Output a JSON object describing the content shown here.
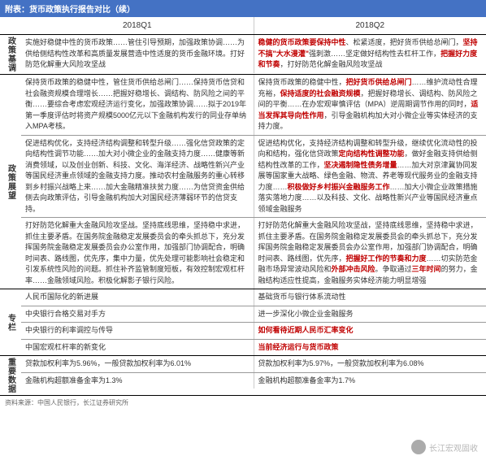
{
  "title": "附表：货币政策执行报告对比（续）",
  "header": {
    "col1": "2018Q1",
    "col2": "2018Q2"
  },
  "sections": [
    {
      "label": "政策基调",
      "rows": [
        {
          "q1": [
            {
              "t": "实施好稳健中性的货币政策……管住引导预期，加强政策协调……为供给侧结构性改革和高质量发展营造中性适度的货币金融环境。打好防范化解重大风险攻坚战",
              "r": false
            }
          ],
          "q2": [
            {
              "t": "稳健的货币政策要保持中性",
              "r": true
            },
            {
              "t": "、松紧适度，把好货币供给总闸门，",
              "r": false
            },
            {
              "t": "坚持不搞\"大水漫灌\"",
              "r": true
            },
            {
              "t": "强刺激……坚定做好结构性去杠杆工作，",
              "r": false
            },
            {
              "t": "把握好力度和节奏",
              "r": true
            },
            {
              "t": "，打好防范化解金融风险攻坚战",
              "r": false
            }
          ]
        }
      ]
    },
    {
      "label": "政策展望",
      "rows": [
        {
          "q1": [
            {
              "t": "保持货币政策的稳健中性，管住货币供给总闸门……保持货币信贷和社会融资规模合理增长……把握好稳增长、调结构、防风险之间的平衡……要综合考虑宏观经济运行变化，加强政策协调……拟于2019年第一季度评估时将资产规模5000亿元以下金融机构发行的同业存单纳入MPA考核。",
              "r": false
            }
          ],
          "q2": [
            {
              "t": "保持货币政策的稳健中性，",
              "r": false
            },
            {
              "t": "把好货币供给总闸门",
              "r": true
            },
            {
              "t": "……维护流动性合理充裕，",
              "r": false
            },
            {
              "t": "保持适度的社会融资规模",
              "r": true
            },
            {
              "t": "，把握好稳增长、调结构、防风险之间的平衡……在办宏观审慎评估（MPA）逆周期调节作用的同时，",
              "r": false
            },
            {
              "t": "适当发挥其导向性作用",
              "r": true
            },
            {
              "t": "，引导金融机构加大对小微企业等实体经济的支持力度。",
              "r": false
            }
          ]
        },
        {
          "q1": [
            {
              "t": "促进结构优化，支持经济结构调整和转型升级……强化信贷政策的定向结构性调节功能……加大对小微企业的金融支持力度……健康等新消费领域，以及创业创新、科技、文化、海洋经济、战略性新兴产业等国民经济重点领域的金融支持力度。推动农村金融服务的重心转移到乡村振兴战略上来……加大金融精准扶贫力度……为信贷资金供给侧去向政策评估，引导金融机构加大对国民经济薄弱环节的信贷支持。",
              "r": false
            }
          ],
          "q2": [
            {
              "t": "促进结构优化，支持经济结构调整和转型升级，继续优化流动性的投向和结构，强化信贷政策",
              "r": false
            },
            {
              "t": "定向结构性调整功能",
              "r": true
            },
            {
              "t": "，做好金融支持供给侧结构性改革的工作，",
              "r": false
            },
            {
              "t": "坚决遏制隐性债务增量",
              "r": true
            },
            {
              "t": "……加大对京津冀协同发展等国家重大战略、绿色金融、物流、养老等现代服务业的金融支持力度……",
              "r": false
            },
            {
              "t": "积极做好乡村振兴金融服务工作",
              "r": true
            },
            {
              "t": "……加大小微企业政策措施落实落地力度……以及科技、文化、战略性新兴产业等国民经济重点领域金融服务",
              "r": false
            }
          ]
        },
        {
          "q1": [
            {
              "t": "打好防范化解重大金融风险攻坚战。坚持底线思维，坚持稳中求进，抓住主要矛盾。在国务院金融稳定发展委员会的牵头抓总下，充分发挥国务院金融稳定发展委员会办公室作用，加强部门协调配合，明确时间表、路线图，优先序，集中力量，优先处理可能影响社会稳定和引发系统性风险的问题。抓住补齐监管制度短板，有效控制宏观杠杆率……金融领域风险。积极化解影子银行风险。",
              "r": false
            }
          ],
          "q2": [
            {
              "t": "打好防范化解重大金融风险攻坚战，坚持底线思维，坚持稳中求进，抓住主要矛盾。在国务院金融稳定发展委员会的牵头抓总下，充分发挥国务院金融稳定发展委员会办公室作用，加强部门协调配合，明确时间表、路线图，优先序，",
              "r": false
            },
            {
              "t": "把握好工作的节奏和力度",
              "r": true
            },
            {
              "t": "……切实防范金融市场异常波动风险和",
              "r": false
            },
            {
              "t": "外部冲击风险",
              "r": true
            },
            {
              "t": "。争取通过",
              "r": false
            },
            {
              "t": "三年时间",
              "r": true
            },
            {
              "t": "的努力，金融结构适应性提高，金融服务实体经济能力明显增强",
              "r": false
            }
          ]
        }
      ]
    },
    {
      "label": "专栏",
      "rows": [
        {
          "q1": [
            {
              "t": "人民币国际化的新进展",
              "r": false
            }
          ],
          "q2": [
            {
              "t": "基础货币与银行体系流动性",
              "r": false
            }
          ]
        },
        {
          "q1": [
            {
              "t": "中央银行合格交易对手方",
              "r": false
            }
          ],
          "q2": [
            {
              "t": "进一步深化小微企业金融服务",
              "r": false
            }
          ]
        },
        {
          "q1": [
            {
              "t": "中央银行的利率调控与传导",
              "r": false
            }
          ],
          "q2": [
            {
              "t": "如何看待近期人民币汇率变化",
              "r": true
            }
          ]
        },
        {
          "q1": [
            {
              "t": "中国宏观杠杆率的新变化",
              "r": false
            }
          ],
          "q2": [
            {
              "t": "当前经济运行与货币政策",
              "r": true
            }
          ]
        }
      ]
    },
    {
      "label": "重要数据",
      "rows": [
        {
          "q1": [
            {
              "t": "贷款加权利率为5.96%，一般贷款加权利率为6.01%",
              "r": false
            }
          ],
          "q2": [
            {
              "t": "贷款加权利率为5.97%，一般贷款加权利率为6.08%",
              "r": false
            }
          ]
        },
        {
          "q1": [
            {
              "t": "金融机构超额准备金率为1.3%",
              "r": false
            }
          ],
          "q2": [
            {
              "t": "金融机构超额准备金率为1.7%",
              "r": false
            }
          ]
        }
      ]
    }
  ],
  "source": "资料来源：中国人民银行，长江证券研究所",
  "watermark": "长江宏观固收"
}
